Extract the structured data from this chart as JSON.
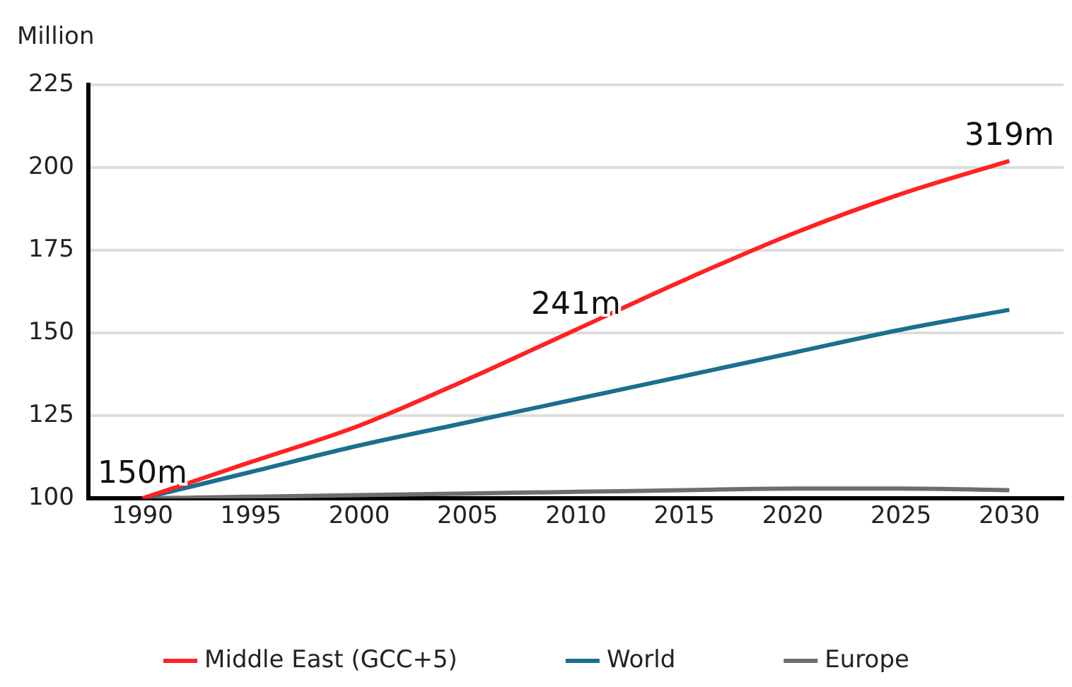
{
  "chart_data": {
    "type": "line",
    "ylabel": "Million",
    "x": [
      1990,
      1995,
      2000,
      2005,
      2010,
      2015,
      2020,
      2025,
      2030
    ],
    "series": [
      {
        "name": "Middle East (GCC+5)",
        "color": "#ff2222",
        "values": [
          100,
          111,
          122,
          136,
          151,
          166,
          180,
          192,
          202
        ]
      },
      {
        "name": "World",
        "color": "#1b6f8f",
        "values": [
          100,
          108,
          116,
          123,
          130,
          137,
          144,
          151,
          157
        ]
      },
      {
        "name": "Europe",
        "color": "#6e6e6e",
        "values": [
          100,
          100.5,
          101,
          101.5,
          102,
          102.5,
          103,
          103,
          102.5
        ]
      }
    ],
    "xlim": [
      1987.5,
      2032.5
    ],
    "xticks": [
      1990,
      1995,
      2000,
      2005,
      2010,
      2015,
      2020,
      2025,
      2030
    ],
    "ylim": [
      100,
      225
    ],
    "yticks": [
      100,
      125,
      150,
      175,
      200,
      225
    ],
    "grid": "y",
    "legend": "bottom",
    "marker": "none",
    "line_style": "solid",
    "annotations": [
      {
        "text": "150m",
        "x": 1990,
        "y": 100
      },
      {
        "text": "241m",
        "x": 2010,
        "y": 151
      },
      {
        "text": "319m",
        "x": 2030,
        "y": 202
      }
    ]
  }
}
